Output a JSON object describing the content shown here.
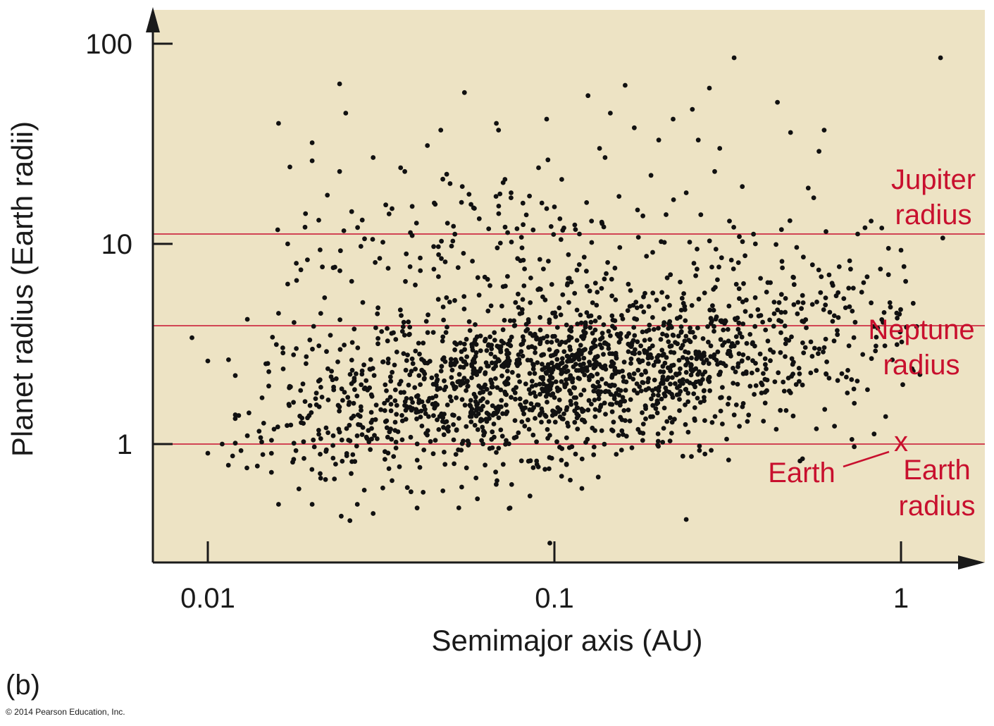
{
  "panel_label": "(b)",
  "copyright": "© 2014 Pearson Education, Inc.",
  "colors": {
    "plot_background": "#ede3c4",
    "points": "#111111",
    "reference_lines": "#c8102e",
    "axes": "#1a1a1a"
  },
  "chart_data": {
    "type": "scatter",
    "title": "",
    "xlabel": "Semimajor axis (AU)",
    "ylabel": "Planet radius (Earth radii)",
    "xscale": "log",
    "yscale": "log",
    "xlim": [
      0.007,
      1.5
    ],
    "ylim": [
      0.3,
      160
    ],
    "xticks": [
      {
        "value": 0.01,
        "label": "0.01"
      },
      {
        "value": 0.1,
        "label": "0.1"
      },
      {
        "value": 1,
        "label": "1"
      }
    ],
    "yticks": [
      {
        "value": 1,
        "label": "1"
      },
      {
        "value": 10,
        "label": "10"
      },
      {
        "value": 100,
        "label": "100"
      }
    ],
    "reference_lines": [
      {
        "id": "jupiter",
        "y": 11.2,
        "label_lines": [
          "Jupiter",
          "radius"
        ]
      },
      {
        "id": "neptune",
        "y": 3.9,
        "label_lines": [
          "Neptune",
          "radius"
        ]
      },
      {
        "id": "earth",
        "y": 1,
        "label_lines": [
          "Earth",
          "radius"
        ]
      }
    ],
    "marker": {
      "x": 1,
      "y": 1,
      "symbol": "x",
      "label": "Earth"
    },
    "points_note": "approximately 1,900 plotted planets; the dense cloud is reproduced from the cluster distribution readable in the figure plus the individually legible outliers",
    "points": [
      [
        0.009,
        3.4
      ],
      [
        0.01,
        2.6
      ],
      [
        0.01,
        0.9
      ],
      [
        0.011,
        1.0
      ],
      [
        0.012,
        2.2
      ],
      [
        0.012,
        1.4
      ],
      [
        0.013,
        4.2
      ],
      [
        0.013,
        1.1
      ],
      [
        0.015,
        2.3
      ],
      [
        0.016,
        0.5
      ],
      [
        0.016,
        40
      ],
      [
        0.016,
        4.5
      ],
      [
        0.017,
        10
      ],
      [
        0.017,
        6.3
      ],
      [
        0.018,
        8.0
      ],
      [
        0.018,
        3.0
      ],
      [
        0.02,
        0.5
      ],
      [
        0.02,
        32
      ],
      [
        0.02,
        26
      ],
      [
        0.022,
        2.9
      ],
      [
        0.023,
        7.6
      ],
      [
        0.023,
        1.1
      ],
      [
        0.024,
        63
      ],
      [
        0.024,
        23
      ],
      [
        0.025,
        45
      ],
      [
        0.026,
        14.5
      ],
      [
        0.026,
        6.5
      ],
      [
        0.027,
        0.5
      ],
      [
        0.028,
        5.1
      ],
      [
        0.03,
        27
      ],
      [
        0.03,
        0.45
      ],
      [
        0.032,
        10.2
      ],
      [
        0.034,
        15
      ],
      [
        0.036,
        24
      ],
      [
        0.037,
        23
      ],
      [
        0.04,
        12.7
      ],
      [
        0.041,
        8.5
      ],
      [
        0.043,
        31
      ],
      [
        0.045,
        16
      ],
      [
        0.047,
        37
      ],
      [
        0.05,
        20
      ],
      [
        0.053,
        0.48
      ],
      [
        0.055,
        57
      ],
      [
        0.058,
        8.2
      ],
      [
        0.061,
        1.8
      ],
      [
        0.068,
        40
      ],
      [
        0.069,
        37
      ],
      [
        0.072,
        21
      ],
      [
        0.075,
        18
      ],
      [
        0.078,
        11.9
      ],
      [
        0.082,
        7.5
      ],
      [
        0.09,
        24
      ],
      [
        0.092,
        16
      ],
      [
        0.095,
        42
      ],
      [
        0.095,
        15
      ],
      [
        0.097,
        0.32
      ],
      [
        0.1,
        15.3
      ],
      [
        0.105,
        21
      ],
      [
        0.11,
        5.1
      ],
      [
        0.115,
        11.8
      ],
      [
        0.125,
        55
      ],
      [
        0.128,
        13
      ],
      [
        0.135,
        30
      ],
      [
        0.14,
        27
      ],
      [
        0.145,
        45
      ],
      [
        0.16,
        62
      ],
      [
        0.17,
        38
      ],
      [
        0.18,
        13.8
      ],
      [
        0.19,
        22
      ],
      [
        0.2,
        33
      ],
      [
        0.21,
        14
      ],
      [
        0.22,
        42
      ],
      [
        0.24,
        18
      ],
      [
        0.25,
        47
      ],
      [
        0.26,
        33
      ],
      [
        0.28,
        60
      ],
      [
        0.29,
        23
      ],
      [
        0.3,
        30
      ],
      [
        0.32,
        13
      ],
      [
        0.33,
        85
      ],
      [
        0.38,
        10
      ],
      [
        0.42,
        6.4
      ],
      [
        0.44,
        51
      ],
      [
        0.48,
        36
      ],
      [
        0.5,
        9.6
      ],
      [
        0.54,
        19
      ],
      [
        0.56,
        17
      ],
      [
        0.58,
        29
      ],
      [
        0.6,
        37
      ],
      [
        0.62,
        7.0
      ],
      [
        0.65,
        5.5
      ],
      [
        0.7,
        1.8
      ],
      [
        0.72,
        2.1
      ],
      [
        0.75,
        11.2
      ],
      [
        0.78,
        6.4
      ],
      [
        0.82,
        13
      ],
      [
        0.88,
        12
      ],
      [
        0.92,
        9.5
      ],
      [
        1.0,
        9.3
      ],
      [
        1.02,
        7.7
      ],
      [
        1.3,
        85
      ],
      [
        1.32,
        10.7
      ],
      [
        0.24,
        0.42
      ],
      [
        0.12,
        0.6
      ],
      [
        0.085,
        0.55
      ]
    ],
    "clusters": [
      {
        "x": 0.11,
        "y": 2.3,
        "sx": 0.3,
        "sy": 0.17,
        "n": 700
      },
      {
        "x": 0.055,
        "y": 1.6,
        "sx": 0.26,
        "sy": 0.2,
        "n": 450
      },
      {
        "x": 0.25,
        "y": 2.6,
        "sx": 0.28,
        "sy": 0.2,
        "n": 380
      },
      {
        "x": 0.022,
        "y": 1.2,
        "sx": 0.14,
        "sy": 0.14,
        "n": 110
      },
      {
        "x": 0.07,
        "y": 9.0,
        "sx": 0.32,
        "sy": 0.22,
        "n": 160
      },
      {
        "x": 0.45,
        "y": 5.5,
        "sx": 0.22,
        "sy": 0.22,
        "n": 120
      }
    ]
  }
}
